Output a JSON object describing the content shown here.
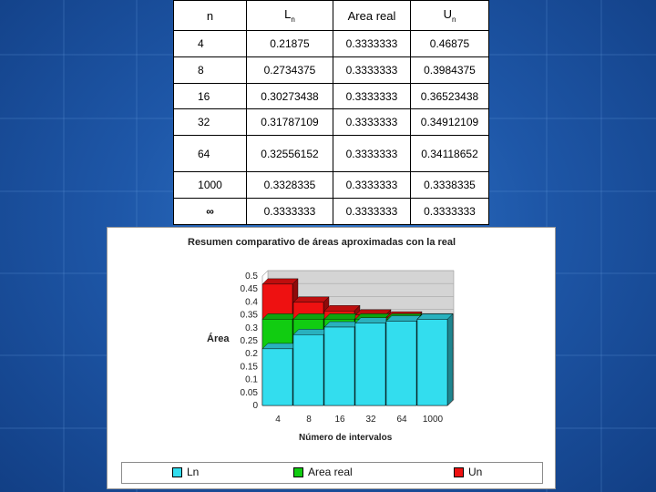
{
  "table": {
    "headers": {
      "n": "n",
      "l_base": "L",
      "l_sub": "n",
      "area": "Area real",
      "u_base": "U",
      "u_sub": "n"
    },
    "rows": [
      {
        "n": "4",
        "l": "0.21875",
        "area": "0.3333333",
        "u": "0.46875"
      },
      {
        "n": "8",
        "l": "0.2734375",
        "area": "0.3333333",
        "u": "0.3984375"
      },
      {
        "n": "16",
        "l": "0.30273438",
        "area": "0.3333333",
        "u": "0.36523438"
      },
      {
        "n": "32",
        "l": "0.31787109",
        "area": "0.3333333",
        "u": "0.34912109"
      },
      {
        "n": "64",
        "l": "0.32556152",
        "area": "0.3333333",
        "u": "0.34118652"
      },
      {
        "n": "1000",
        "l": "0.3328335",
        "area": "0.3333333",
        "u": "0.3338335"
      },
      {
        "n": "∞",
        "l": "0.3333333",
        "area": "0.3333333",
        "u": "0.3333333"
      }
    ]
  },
  "chart_data": {
    "type": "bar",
    "title": "Resumen comparativo de áreas aproximadas con la real",
    "xlabel": "Número de intervalos",
    "ylabel": "Área",
    "categories": [
      "4",
      "8",
      "16",
      "32",
      "64",
      "1000"
    ],
    "ylim": [
      0,
      0.5
    ],
    "yticks": [
      "0",
      "0.05",
      "0.1",
      "0.15",
      "0.2",
      "0.25",
      "0.3",
      "0.35",
      "0.4",
      "0.45",
      "0.5"
    ],
    "grid": true,
    "legend_position": "bottom",
    "series": [
      {
        "name": "Ln",
        "color": "#33ddee",
        "values": [
          0.21875,
          0.2734375,
          0.30273438,
          0.31787109,
          0.32556152,
          0.3328335
        ]
      },
      {
        "name": "Area real",
        "color": "#11cc11",
        "values": [
          0.3333333,
          0.3333333,
          0.3333333,
          0.3333333,
          0.3333333,
          0.3333333
        ]
      },
      {
        "name": "Un",
        "color": "#ee1111",
        "values": [
          0.46875,
          0.3984375,
          0.36523438,
          0.34912109,
          0.34118652,
          0.3338335
        ]
      }
    ]
  }
}
